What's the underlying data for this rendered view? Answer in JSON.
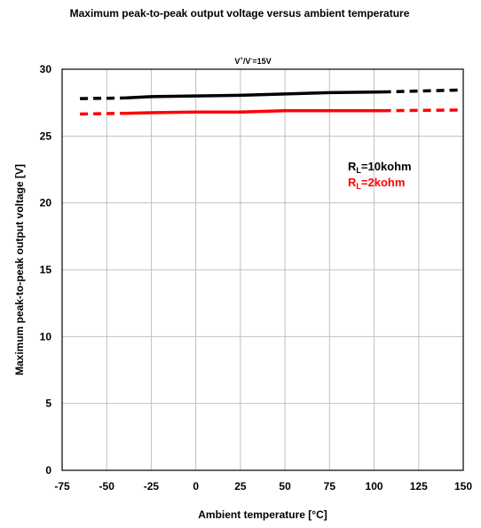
{
  "chart_data": {
    "type": "line",
    "title": "Maximum peak-to-peak output voltage versus ambient temperature",
    "condition_label": {
      "prefix": "V",
      "sup1": "+",
      "mid": "/V",
      "sup2": "-",
      "suffix": "=15V"
    },
    "xlabel": "Ambient temperature [°C]",
    "ylabel": "Maximum peak-to-peak output voltage [V]",
    "xlim": [
      -75,
      150
    ],
    "ylim": [
      0,
      30
    ],
    "xticks": [
      "-75",
      "-50",
      "-25",
      "0",
      "25",
      "50",
      "75",
      "100",
      "125",
      "150"
    ],
    "yticks": [
      "0",
      "5",
      "10",
      "15",
      "20",
      "25",
      "30"
    ],
    "grid": true,
    "series": [
      {
        "name": "RL=10kohm",
        "label_main": "R",
        "label_sub": "L",
        "label_rest": "=10kohm",
        "color": "#000000",
        "dashed_low": {
          "x": [
            -65,
            -40
          ],
          "y": [
            27.8,
            27.85
          ]
        },
        "solid": {
          "x": [
            -40,
            -25,
            0,
            25,
            50,
            75,
            105
          ],
          "y": [
            27.85,
            27.95,
            28.0,
            28.05,
            28.15,
            28.25,
            28.3
          ]
        },
        "dashed_high": {
          "x": [
            105,
            150
          ],
          "y": [
            28.3,
            28.45
          ]
        }
      },
      {
        "name": "RL=2kohm",
        "label_main": "R",
        "label_sub": "L",
        "label_rest": "=2kohm",
        "color": "#ff0000",
        "dashed_low": {
          "x": [
            -65,
            -40
          ],
          "y": [
            26.65,
            26.7
          ]
        },
        "solid": {
          "x": [
            -40,
            -25,
            0,
            25,
            50,
            75,
            105
          ],
          "y": [
            26.7,
            26.75,
            26.8,
            26.8,
            26.9,
            26.9,
            26.9
          ]
        },
        "dashed_high": {
          "x": [
            105,
            150
          ],
          "y": [
            26.9,
            26.95
          ]
        }
      }
    ]
  }
}
